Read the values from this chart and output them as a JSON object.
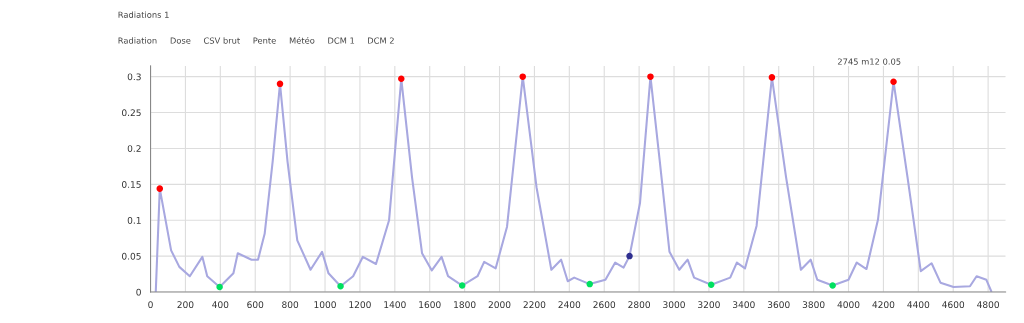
{
  "chart_data": {
    "type": "line",
    "xlim": [
      0,
      4900
    ],
    "ylim": [
      0,
      0.315
    ],
    "xticks": [
      0,
      200,
      400,
      600,
      800,
      1000,
      1200,
      1400,
      1600,
      1800,
      2000,
      2200,
      2400,
      2600,
      2800,
      3000,
      3200,
      3400,
      3600,
      3800,
      4000,
      4200,
      4400,
      4600,
      4800
    ],
    "yticks": [
      0,
      0.05,
      0.1,
      0.15,
      0.2,
      0.25,
      0.3
    ],
    "grid": true,
    "series": [
      {
        "color": "#a8a8e0",
        "marker": "none",
        "x": [
          30,
          53,
          118,
          165,
          225,
          297,
          325,
          396,
          475,
          500,
          579,
          616,
          654,
          700,
          742,
          785,
          841,
          917,
          983,
          1020,
          1089,
          1161,
          1217,
          1292,
          1367,
          1437,
          1499,
          1556,
          1612,
          1668,
          1705,
          1786,
          1874,
          1912,
          1978,
          2043,
          2133,
          2212,
          2297,
          2353,
          2391,
          2428,
          2517,
          2607,
          2663,
          2711,
          2745,
          2805,
          2865,
          2918,
          2974,
          3030,
          3078,
          3115,
          3213,
          3322,
          3360,
          3407,
          3473,
          3561,
          3642,
          3727,
          3783,
          3821,
          3909,
          4000,
          4047,
          4103,
          4169,
          4258,
          4338,
          4414,
          4476,
          4527,
          4602,
          4696,
          4734,
          4790,
          4818
        ],
        "values": [
          0,
          0.144,
          0.058,
          0.035,
          0.022,
          0.049,
          0.022,
          0.007,
          0.026,
          0.054,
          0.045,
          0.045,
          0.081,
          0.182,
          0.29,
          0.182,
          0.072,
          0.031,
          0.056,
          0.026,
          0.008,
          0.022,
          0.049,
          0.039,
          0.1,
          0.297,
          0.159,
          0.054,
          0.03,
          0.049,
          0.022,
          0.009,
          0.022,
          0.042,
          0.033,
          0.091,
          0.3,
          0.146,
          0.031,
          0.045,
          0.015,
          0.02,
          0.011,
          0.017,
          0.041,
          0.034,
          0.05,
          0.124,
          0.3,
          0.183,
          0.056,
          0.031,
          0.045,
          0.02,
          0.01,
          0.02,
          0.041,
          0.033,
          0.092,
          0.299,
          0.16,
          0.031,
          0.045,
          0.017,
          0.009,
          0.017,
          0.041,
          0.032,
          0.101,
          0.293,
          0.16,
          0.029,
          0.04,
          0.013,
          0.007,
          0.008,
          0.022,
          0.017,
          0.001
        ]
      },
      {
        "type": "scatter",
        "color": "#ff0000",
        "marker": "circle",
        "x": [
          53,
          742,
          1437,
          2133,
          2865,
          3561,
          4258
        ],
        "values": [
          0.144,
          0.29,
          0.297,
          0.3,
          0.3,
          0.299,
          0.293
        ]
      },
      {
        "type": "scatter",
        "color": "#00e060",
        "marker": "circle",
        "x": [
          396,
          1089,
          1786,
          2517,
          3213,
          3909
        ],
        "values": [
          0.007,
          0.008,
          0.009,
          0.011,
          0.01,
          0.009
        ]
      },
      {
        "type": "scatter",
        "color": "#303090",
        "marker": "circle",
        "x": [
          2745
        ],
        "values": [
          0.05
        ]
      }
    ],
    "annotations": [
      "Radiations 1",
      "Radiation",
      "Dose",
      "CSV brut",
      "Pente",
      "Météo",
      "DCM 1",
      "DCM 2",
      "2745 m12 0.05"
    ]
  }
}
